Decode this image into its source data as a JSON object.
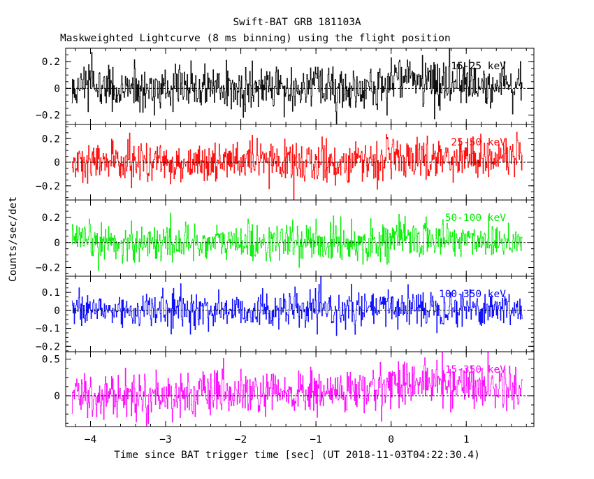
{
  "chart_data": {
    "type": "line",
    "title": "Swift-BAT GRB 181103A",
    "subtitle": "Maskweighted Lightcurve (8 ms binning) using the flight position",
    "xlabel": "Time since BAT trigger time [sec] (UT 2018-11-03T04:22:30.4)",
    "ylabel": "Counts/sec/det",
    "xlim": [
      -4.33,
      1.9
    ],
    "x_ticks": [
      -4,
      -3,
      -2,
      -1,
      0,
      1
    ],
    "x_tick_labels": [
      "−4",
      "−3",
      "−2",
      "−1",
      "0",
      "1"
    ],
    "data_x_range": [
      -4.25,
      1.75
    ],
    "bin_width_sec": 0.008,
    "grid": false,
    "zero_line": "dashed",
    "panels": [
      {
        "band": "15-25 keV",
        "color": "#000000",
        "ylim": [
          -0.27,
          0.3
        ],
        "y_ticks": [
          -0.2,
          0,
          0.2
        ],
        "y_tick_labels": [
          "−0.2",
          "0",
          "0.2"
        ],
        "noise_amplitude": 0.085,
        "trend": [
          [
            -4.25,
            0.0
          ],
          [
            -0.2,
            0.0
          ],
          [
            0.0,
            0.07
          ],
          [
            1.75,
            0.04
          ]
        ]
      },
      {
        "band": "25-50 keV",
        "color": "#ff0000",
        "ylim": [
          -0.32,
          0.32
        ],
        "y_ticks": [
          -0.2,
          0,
          0.2
        ],
        "y_tick_labels": [
          "−0.2",
          "0",
          "0.2"
        ],
        "noise_amplitude": 0.085,
        "trend": [
          [
            -4.25,
            0.0
          ],
          [
            -0.5,
            0.0
          ],
          [
            0.0,
            0.03
          ],
          [
            1.75,
            0.05
          ]
        ]
      },
      {
        "band": "50-100 keV",
        "color": "#00ee00",
        "ylim": [
          -0.27,
          0.34
        ],
        "y_ticks": [
          -0.2,
          0,
          0.2
        ],
        "y_tick_labels": [
          "−0.2",
          "0",
          "0.2"
        ],
        "noise_amplitude": 0.075,
        "trend": [
          [
            -4.25,
            0.0
          ],
          [
            -0.3,
            0.0
          ],
          [
            0.0,
            0.03
          ],
          [
            1.75,
            0.02
          ]
        ]
      },
      {
        "band": "100-350 keV",
        "color": "#0000ff",
        "ylim": [
          -0.23,
          0.19
        ],
        "y_ticks": [
          -0.2,
          -0.1,
          0,
          0.1
        ],
        "y_tick_labels": [
          "−0.2",
          "−0.1",
          "0",
          "0.1"
        ],
        "noise_amplitude": 0.05,
        "trend": [
          [
            -4.25,
            0.0
          ],
          [
            -0.3,
            0.0
          ],
          [
            0.0,
            0.02
          ],
          [
            1.75,
            0.01
          ]
        ]
      },
      {
        "band": "15-350 keV",
        "color": "#ff00ff",
        "ylim": [
          -0.42,
          0.6
        ],
        "y_ticks": [
          0,
          0.5
        ],
        "y_tick_labels": [
          "0",
          "0.5"
        ],
        "noise_amplitude": 0.15,
        "trend": [
          [
            -4.25,
            0.0
          ],
          [
            -1.5,
            0.02
          ],
          [
            -0.2,
            0.07
          ],
          [
            0.0,
            0.2
          ],
          [
            1.75,
            0.12
          ]
        ]
      }
    ]
  }
}
